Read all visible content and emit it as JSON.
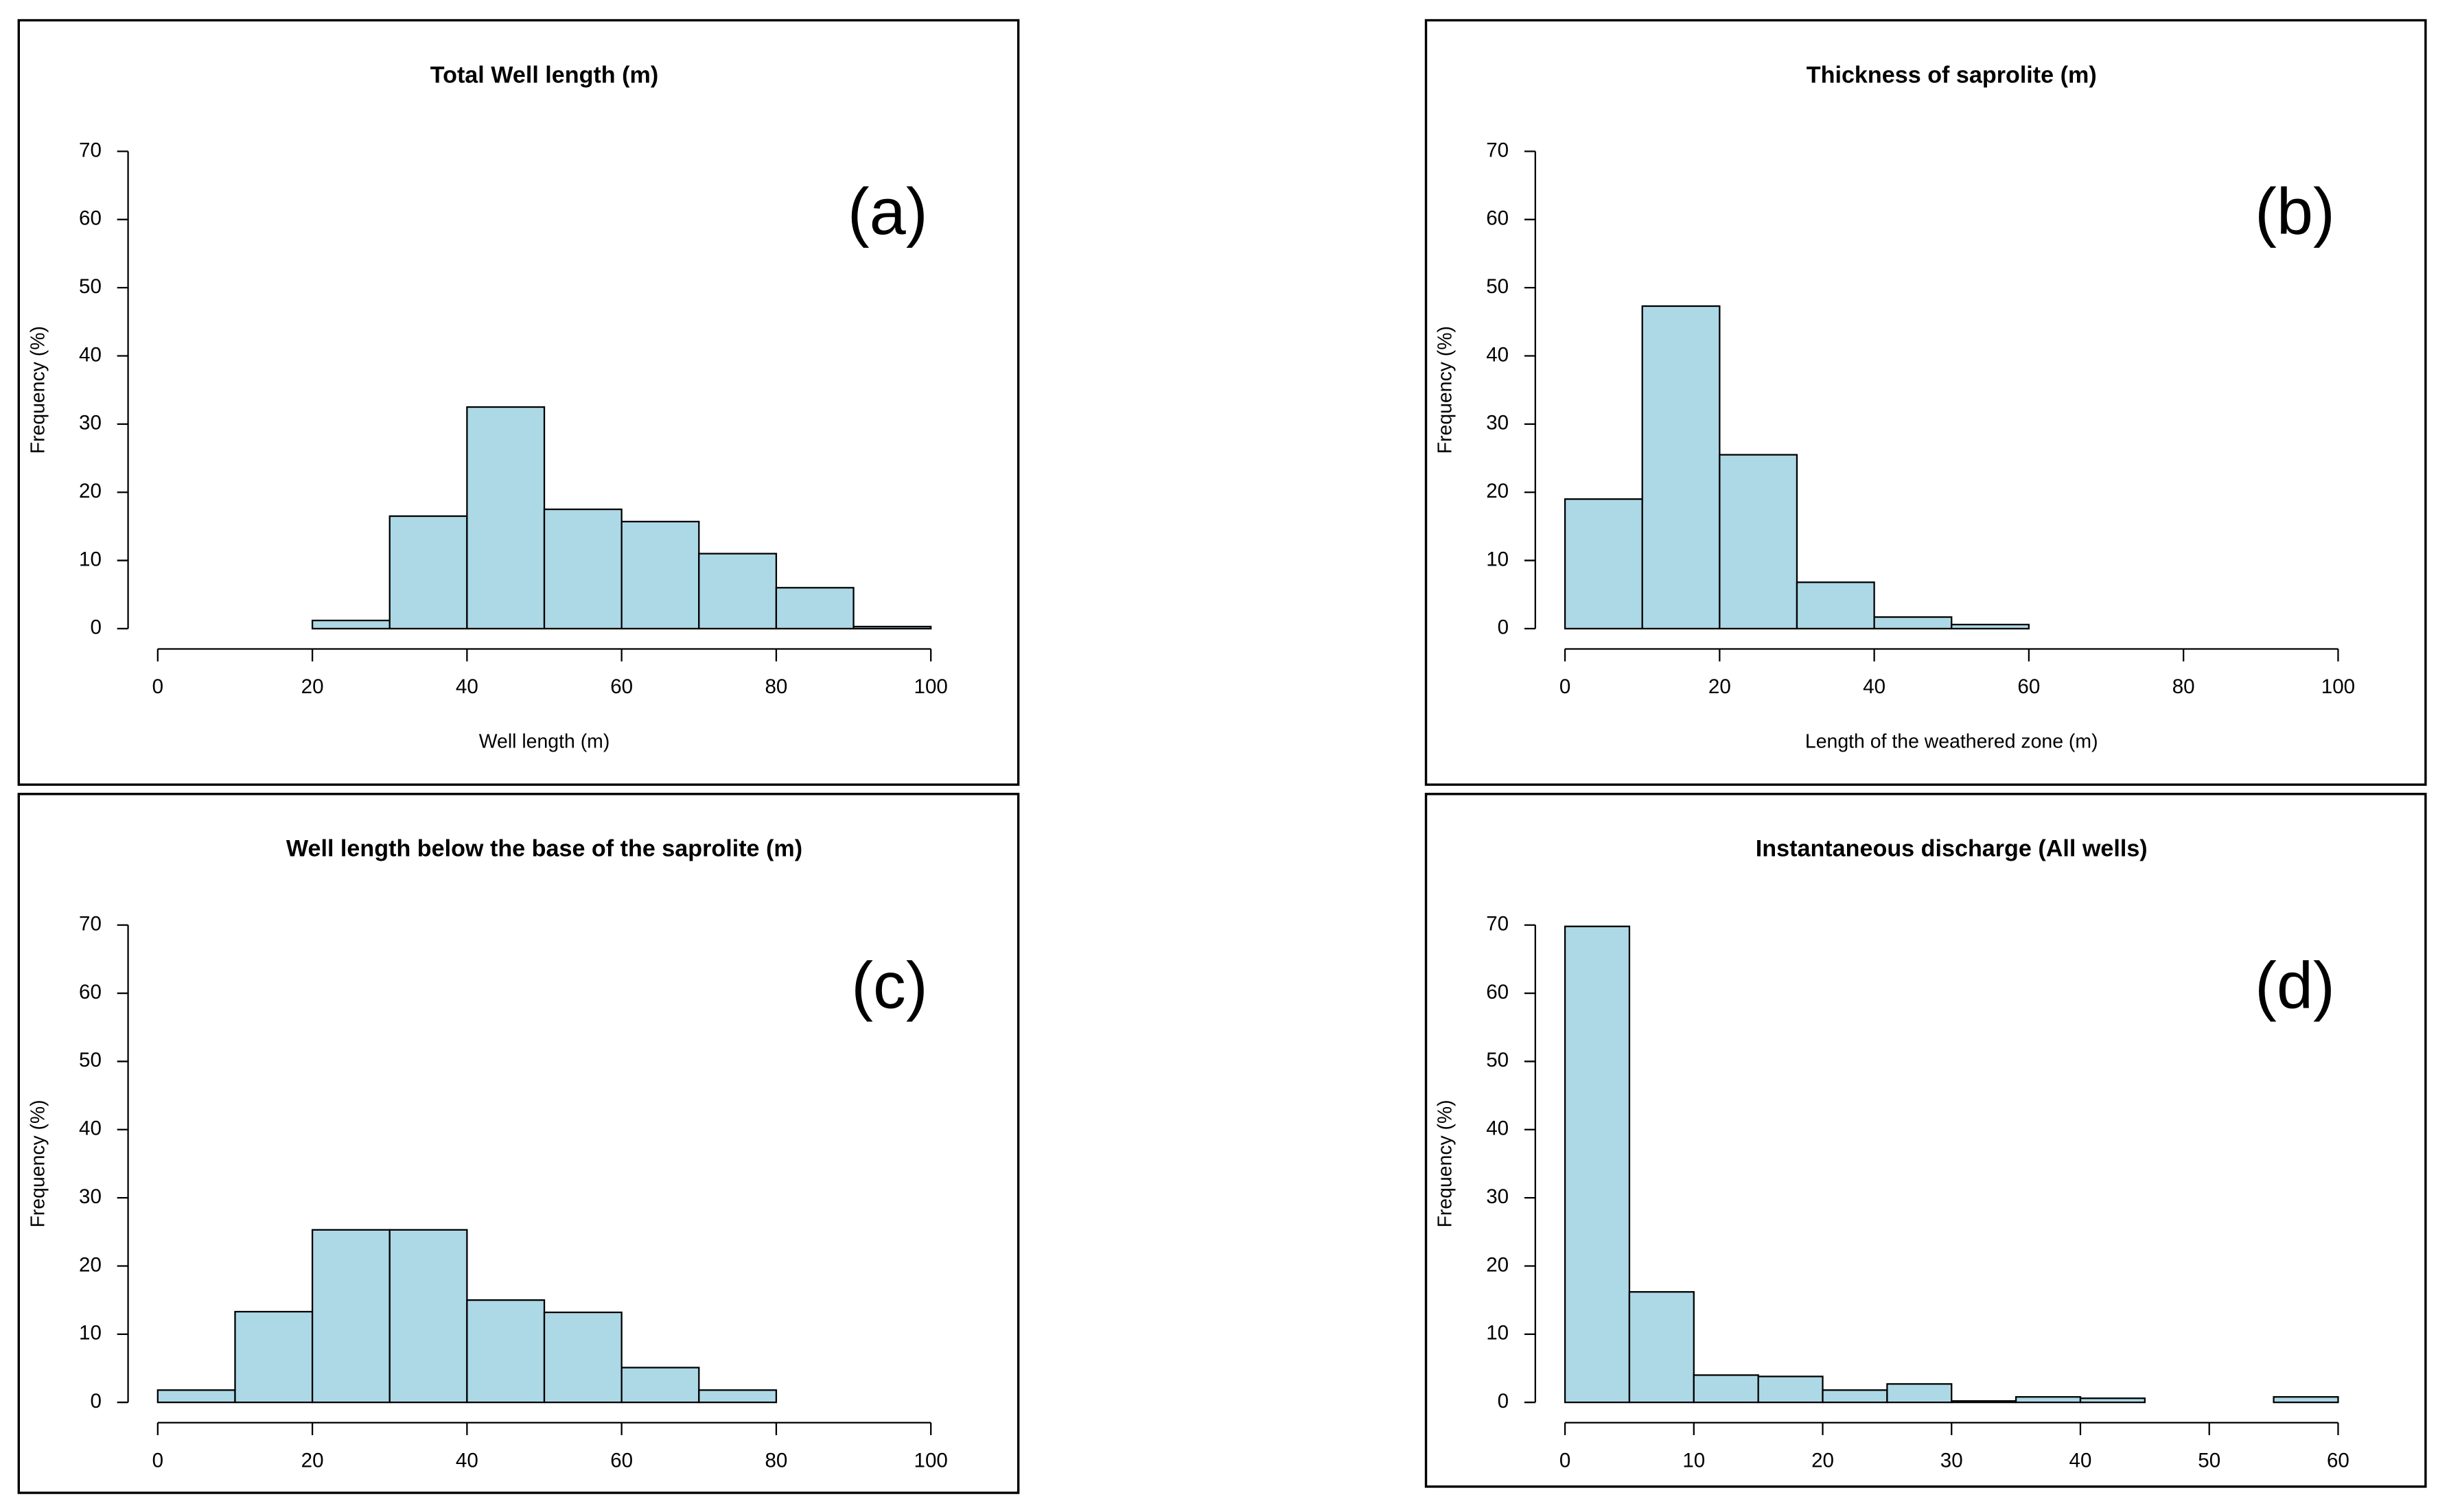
{
  "chart_data": [
    {
      "type": "histogram",
      "title": "Total Well length (m)",
      "annotation": "(a)",
      "xlabel": "Well length (m)",
      "ylabel": "Frequency (%)",
      "bins": [
        0,
        10,
        20,
        30,
        40,
        50,
        60,
        70,
        80,
        90,
        100
      ],
      "values": [
        0,
        0,
        1.2,
        16.5,
        32.5,
        17.5,
        15.7,
        11,
        6,
        0.3
      ],
      "color": "#add8e6",
      "xlim": [
        0,
        100
      ],
      "ylim": [
        0,
        70
      ],
      "xticks": [
        0,
        20,
        40,
        60,
        80,
        100
      ],
      "yticks": [
        0,
        10,
        20,
        30,
        40,
        50,
        60,
        70
      ]
    },
    {
      "type": "histogram",
      "title": "Thickness of saprolite (m)",
      "annotation": "(b)",
      "xlabel": "Length of the weathered zone (m)",
      "ylabel": "Frequency (%)",
      "bins": [
        0,
        10,
        20,
        30,
        40,
        50,
        60,
        70,
        80,
        90,
        100
      ],
      "values": [
        19,
        47.3,
        25.5,
        6.8,
        1.7,
        0.6,
        0,
        0,
        0,
        0
      ],
      "color": "#add8e6",
      "xlim": [
        0,
        100
      ],
      "ylim": [
        0,
        70
      ],
      "xticks": [
        0,
        20,
        40,
        60,
        80,
        100
      ],
      "yticks": [
        0,
        10,
        20,
        30,
        40,
        50,
        60,
        70
      ]
    },
    {
      "type": "histogram",
      "title": "Well length below the base of the saprolite (m)",
      "annotation": "(c)",
      "ylabel": "Frequency (%)",
      "bins": [
        0,
        10,
        20,
        30,
        40,
        50,
        60,
        70,
        80,
        90,
        100
      ],
      "values": [
        1.8,
        13.3,
        25.3,
        25.3,
        15,
        13.2,
        5.1,
        1.8,
        0,
        0
      ],
      "color": "#add8e6",
      "xlim": [
        0,
        100
      ],
      "ylim": [
        0,
        70
      ],
      "xticks": [
        0,
        20,
        40,
        60,
        80,
        100
      ],
      "yticks": [
        0,
        10,
        20,
        30,
        40,
        50,
        60,
        70
      ]
    },
    {
      "type": "histogram",
      "title": "Instantaneous discharge (All wells)",
      "annotation": "(d)",
      "ylabel": "Frequency (%)",
      "bins": [
        0,
        5,
        10,
        15,
        20,
        25,
        30,
        35,
        40,
        45,
        50,
        55,
        60
      ],
      "values": [
        69.8,
        16.2,
        4,
        3.8,
        1.8,
        2.7,
        0.2,
        0.8,
        0.6,
        0,
        0,
        0.8
      ],
      "color": "#add8e6",
      "xlim": [
        0,
        60
      ],
      "ylim": [
        0,
        70
      ],
      "xticks": [
        0,
        10,
        20,
        30,
        40,
        50,
        60
      ],
      "yticks": [
        0,
        10,
        20,
        30,
        40,
        50,
        60,
        70
      ]
    }
  ]
}
